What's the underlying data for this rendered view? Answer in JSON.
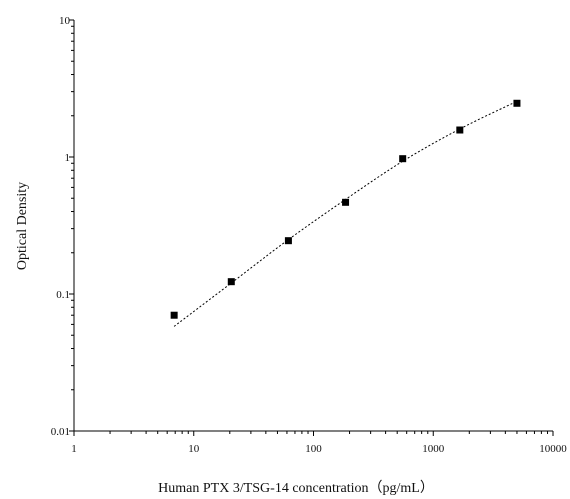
{
  "chart_data": {
    "type": "scatter",
    "xlabel": "Human PTX 3/TSG-14 concentration（pg/mL）",
    "ylabel": "Optical Density",
    "x_scale": "log",
    "y_scale": "log",
    "xlim": [
      1,
      10000
    ],
    "ylim": [
      0.01,
      10
    ],
    "x_ticks": [
      "1",
      "10",
      "100",
      "1000",
      "10000"
    ],
    "y_ticks": [
      "0.01",
      "0.1",
      "1",
      "10"
    ],
    "grid": false,
    "series": [
      {
        "marker": "square",
        "color": "#000000",
        "points": [
          {
            "x": 6.86,
            "y": 0.07
          },
          {
            "x": 20.58,
            "y": 0.123
          },
          {
            "x": 61.73,
            "y": 0.245
          },
          {
            "x": 185.2,
            "y": 0.467
          },
          {
            "x": 555.6,
            "y": 0.972
          },
          {
            "x": 1666.7,
            "y": 1.574
          },
          {
            "x": 5000,
            "y": 2.467
          }
        ]
      }
    ],
    "fit_curve": {
      "style": "dotted",
      "color": "#000000",
      "points": [
        {
          "x": 6.86,
          "y": 0.058
        },
        {
          "x": 20,
          "y": 0.118
        },
        {
          "x": 60,
          "y": 0.245
        },
        {
          "x": 185,
          "y": 0.49
        },
        {
          "x": 555,
          "y": 0.93
        },
        {
          "x": 1666,
          "y": 1.6
        },
        {
          "x": 5000,
          "y": 2.55
        }
      ]
    }
  }
}
